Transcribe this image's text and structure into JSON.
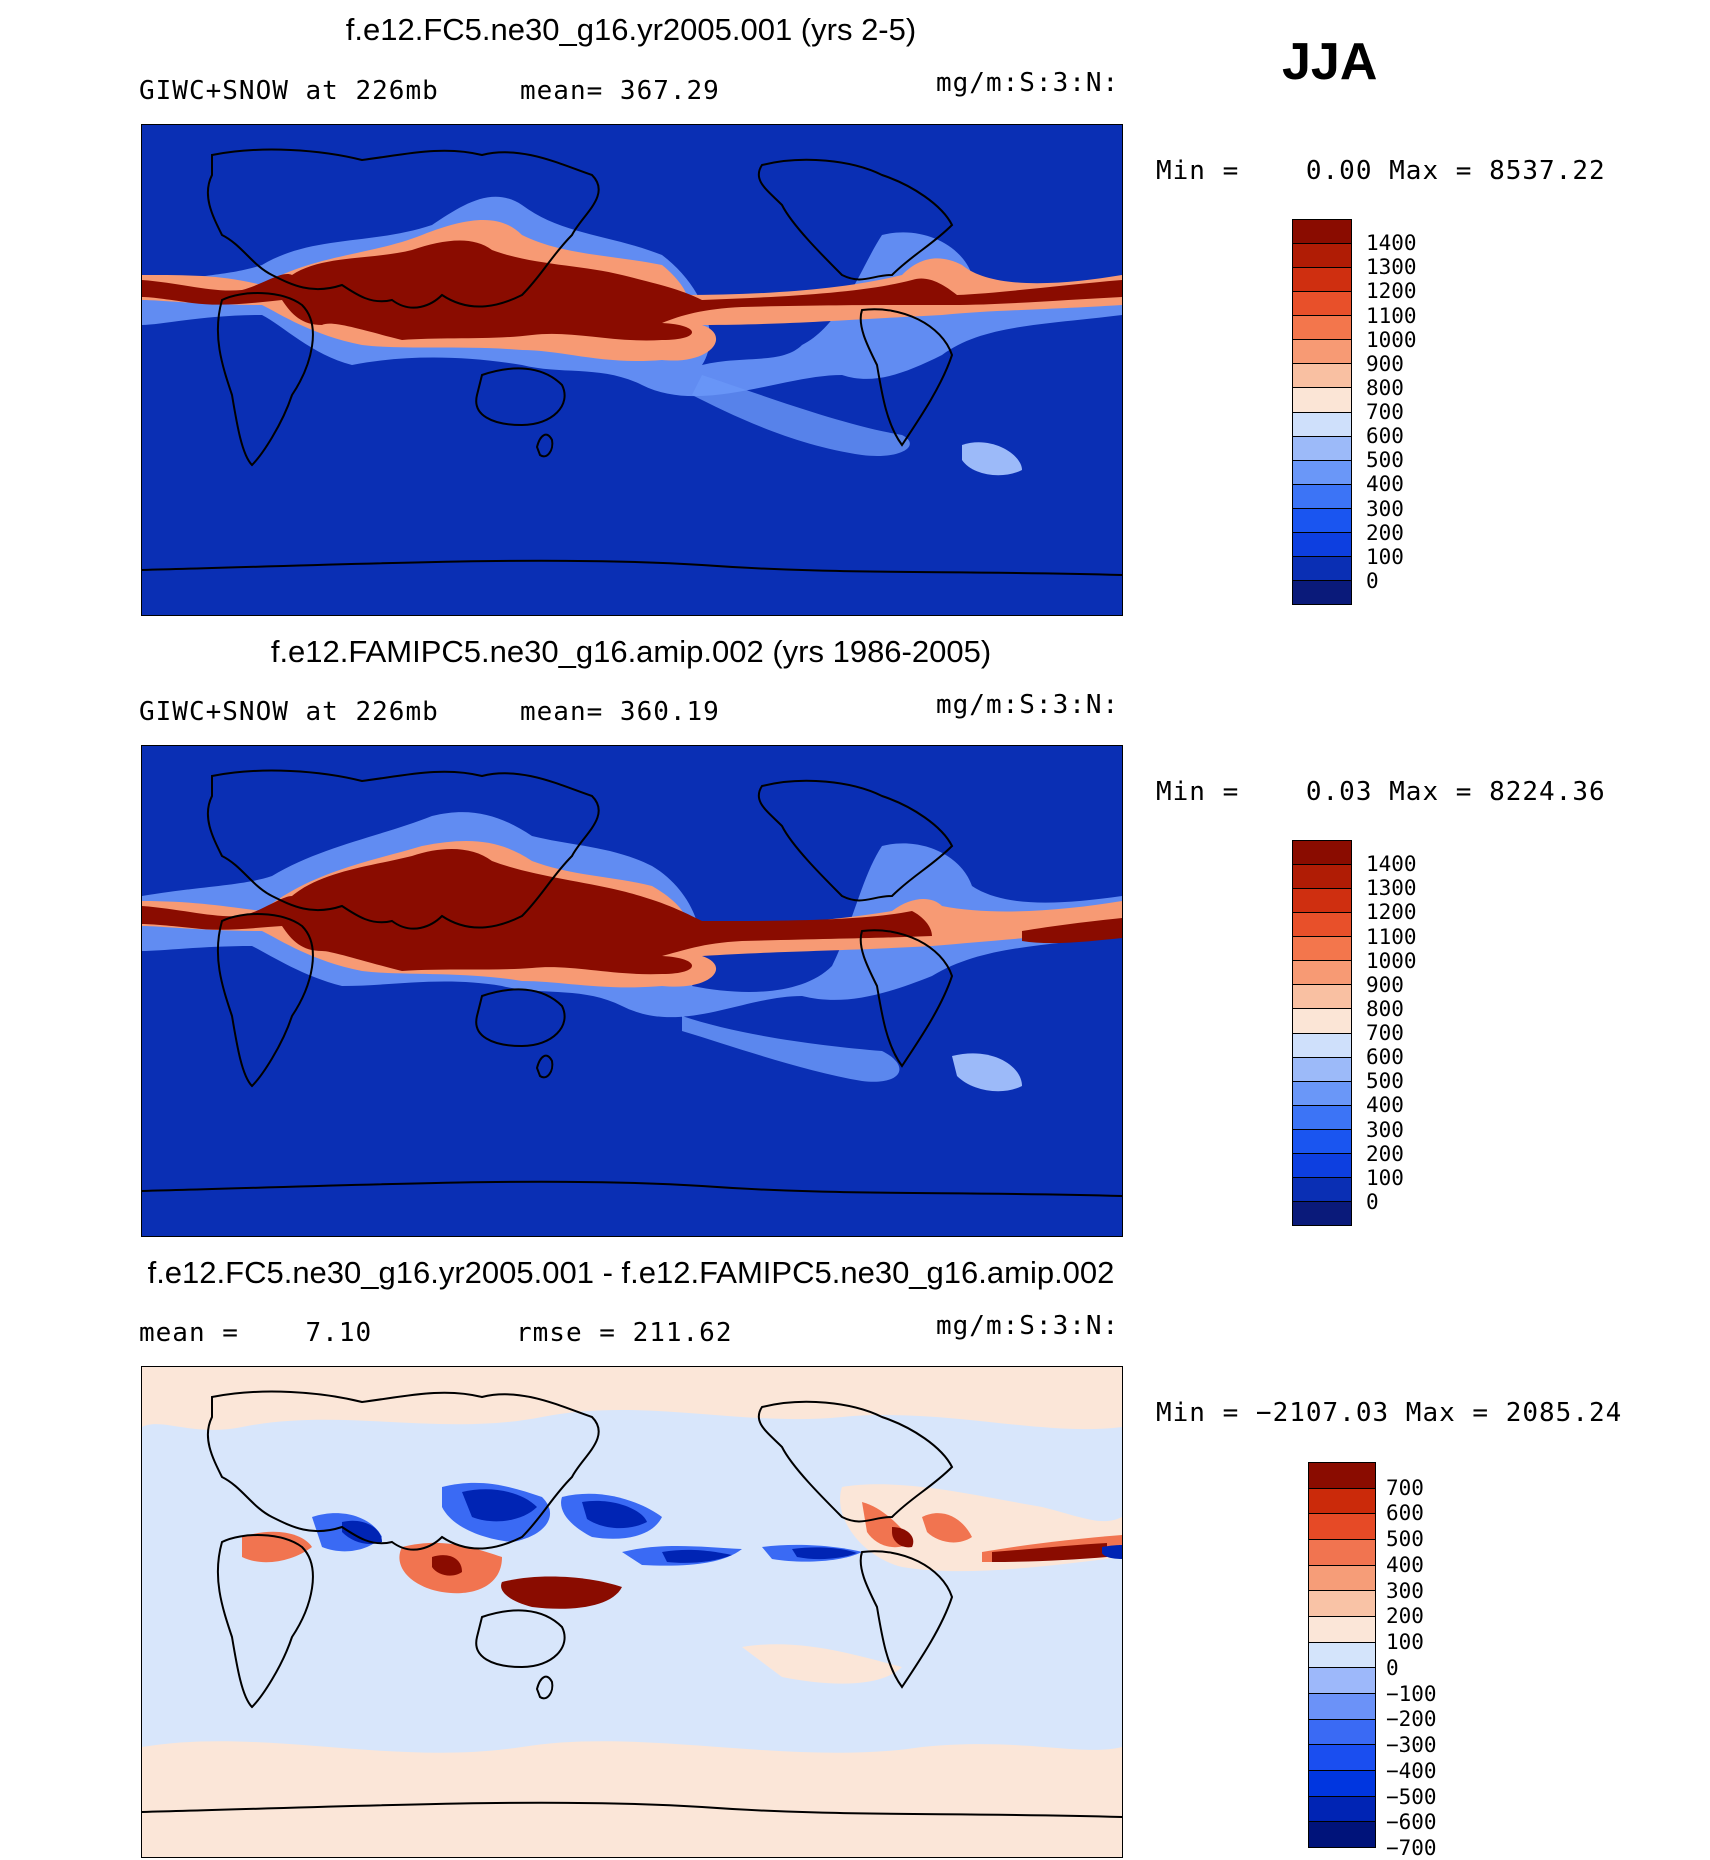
{
  "season_label": "JJA",
  "panels": [
    {
      "title": "f.e12.FC5.ne30_g16.yr2005.001 (yrs 2-5)",
      "left_info": "GIWC+SNOW at 226mb",
      "mid_info": "mean= 367.29",
      "units": "mg/m:S:3:N:",
      "minmax": "Min =    0.00 Max = 8537.22",
      "colorbar_levels": [
        "1400",
        "1300",
        "1200",
        "1100",
        "1000",
        "900",
        "800",
        "700",
        "600",
        "500",
        "400",
        "300",
        "200",
        "100",
        "0"
      ]
    },
    {
      "title": "f.e12.FAMIPC5.ne30_g16.amip.002 (yrs 1986-2005)",
      "left_info": "GIWC+SNOW at 226mb",
      "mid_info": "mean= 360.19",
      "units": "mg/m:S:3:N:",
      "minmax": "Min =    0.03 Max = 8224.36",
      "colorbar_levels": [
        "1400",
        "1300",
        "1200",
        "1100",
        "1000",
        "900",
        "800",
        "700",
        "600",
        "500",
        "400",
        "300",
        "200",
        "100",
        "0"
      ]
    },
    {
      "title": "f.e12.FC5.ne30_g16.yr2005.001 - f.e12.FAMIPC5.ne30_g16.amip.002",
      "left_info": "mean =    7.10",
      "mid_info": "rmse = 211.62",
      "units": "mg/m:S:3:N:",
      "minmax": "Min = −2107.03 Max = 2085.24",
      "colorbar_levels": [
        "700",
        "600",
        "500",
        "400",
        "300",
        "200",
        "100",
        "0",
        "−100",
        "−200",
        "−300",
        "−400",
        "−500",
        "−600",
        "−700"
      ]
    }
  ],
  "colors": {
    "abs_scale": [
      "#0a1a7a",
      "#0a2fb4",
      "#0d3fe0",
      "#1a55f0",
      "#3c74f6",
      "#6a97f8",
      "#9cbaf9",
      "#cfe0fb",
      "#fbe5d6",
      "#f9c0a2",
      "#f79a74",
      "#f3764c",
      "#e8502a",
      "#cf2f10",
      "#b01c05",
      "#8a0c00"
    ],
    "diff_scale": [
      "#00137a",
      "#0024b4",
      "#0036e0",
      "#1a4ef0",
      "#3a6af4",
      "#6b92f8",
      "#9db8fa",
      "#d4e4fb",
      "#fbe6d8",
      "#f9c3a6",
      "#f69d78",
      "#f17450",
      "#e64a26",
      "#cb2a0a",
      "#8a0c00"
    ],
    "ocean_abs": "#0a2fb4",
    "background_diff": "#d8e6fb"
  }
}
